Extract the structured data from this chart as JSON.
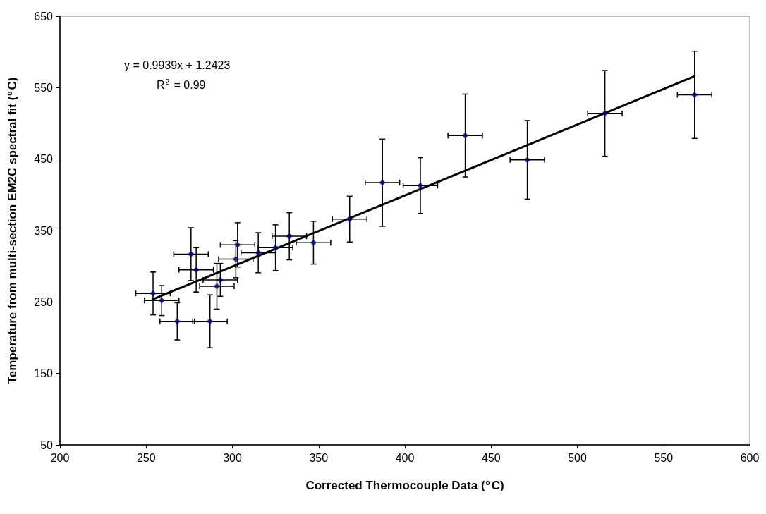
{
  "chart_data": {
    "type": "scatter",
    "xlabel": "Corrected Thermocouple Data ($^{o}$C)",
    "ylabel": "Temperature from multi-section EM2C spectral fit ($^{o}$C)",
    "annotations": [
      "y = 0.9939x + 1.2423",
      "R$^{2}$ = 0.99"
    ],
    "xlim": [
      200,
      600
    ],
    "xticks": [
      200,
      250,
      300,
      350,
      400,
      450,
      500,
      550,
      600
    ],
    "ylim": [
      50,
      650
    ],
    "yticks": [
      50,
      150,
      250,
      350,
      450,
      550,
      650
    ],
    "marker": "diamond",
    "series": [
      {
        "color": "#000080",
        "x": [
          254,
          259,
          268,
          276,
          279,
          287,
          291,
          293,
          302,
          303,
          315,
          325,
          333,
          347,
          368,
          387,
          409,
          435,
          471,
          516,
          568
        ],
        "values": [
          262,
          252,
          223,
          317,
          295,
          223,
          272,
          281,
          310,
          330,
          319,
          326,
          342,
          333,
          366,
          417,
          413,
          483,
          449,
          514,
          540
        ],
        "errors": [
          30,
          21,
          26,
          37,
          31,
          37,
          32,
          23,
          26,
          31,
          28,
          32,
          33,
          30,
          32,
          61,
          39,
          58,
          55,
          60,
          61
        ],
        "xerrors": [
          10,
          10,
          10,
          10,
          10,
          10,
          10,
          10,
          10,
          10,
          10,
          10,
          10,
          10,
          10,
          10,
          10,
          10,
          10,
          10,
          10
        ]
      },
      {
        "type": "line",
        "color": "#000000",
        "marker": "none",
        "x": [
          254,
          568
        ],
        "values": [
          254,
          566
        ]
      }
    ]
  }
}
